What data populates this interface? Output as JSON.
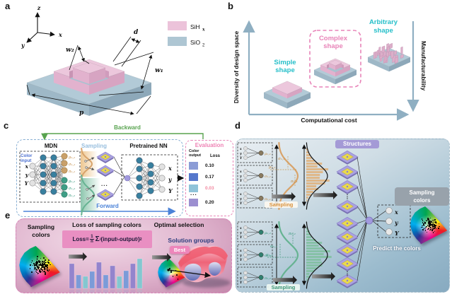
{
  "panel_a": {
    "label": "a",
    "axes": {
      "x": "x",
      "y": "y",
      "z": "z"
    },
    "dims": {
      "d": "d",
      "w2": "w₂",
      "w1": "w₁",
      "p": "p"
    },
    "legend": [
      {
        "name": "SiH",
        "sub": "x",
        "color": "#ecc3da"
      },
      {
        "name": "SiO",
        "sub": "2",
        "color": "#aec6d3"
      }
    ]
  },
  "panel_b": {
    "label": "b",
    "y_axis": "Diversity of design space",
    "x_axis": "Computational cost",
    "right_axis": "Manufacturability",
    "shapes": [
      {
        "line1": "Simple",
        "line2": "shape",
        "color": "#25bfc9"
      },
      {
        "line1": "Complex",
        "line2": "shape",
        "color": "#e884b8"
      },
      {
        "line1": "Arbitrary",
        "line2": "shape",
        "color": "#25bfc9"
      }
    ],
    "accent_cyan": "#25bfc9",
    "accent_pink": "#e884b8"
  },
  "panel_c": {
    "label": "c",
    "backward": "Backward",
    "forward": "Forward",
    "mdn_title": "MDN",
    "sampling_title": "Sampling",
    "nn_title": "Pretrained NN",
    "color_input": {
      "line1": "Color",
      "line2": "input"
    },
    "inputs": [
      "x",
      "y",
      "Y"
    ],
    "outputs": [
      "x",
      "y",
      "Y"
    ],
    "mdn_params_orange": [
      "μ₁,₁",
      "σ₁,₁",
      "π₁,₁"
    ],
    "mdn_params_green": [
      "μ₁,₂",
      "σ₁,₂",
      "π₁,₂"
    ],
    "dots": "...",
    "evaluation": {
      "title": "Evaluation",
      "col1_line1": "Color",
      "col1_line2": "output",
      "col2": "Loss",
      "rows": [
        {
          "color": "#8b9cd6",
          "loss": "0.10",
          "highlight": false
        },
        {
          "color": "#5577cc",
          "loss": "0.17",
          "highlight": false
        },
        {
          "color": "#8fc3d9",
          "loss": "0.03",
          "highlight": true
        },
        {
          "color": "#9c8fd0",
          "loss": "0.20",
          "highlight": false
        }
      ],
      "ellipsis": "...",
      "highlight_color": "#f2889f"
    }
  },
  "panel_d": {
    "label": "d",
    "structures_title": "Structures",
    "sampling_colors": {
      "line1": "Sampling",
      "line2": "colors"
    },
    "predict": "Predict the colors",
    "sampling_orange": "Sampling",
    "sampling_green": "Sampling",
    "box_inputs": [
      "x",
      "y",
      "Y"
    ],
    "orange_params": [
      "μ₁,₁",
      "σ₁,₁",
      "π₁,₁"
    ],
    "green_params": [
      "μ₁,₂",
      "σ₁,₂",
      "π₁,₂"
    ],
    "orange_annot": {
      "sigma": "σ₁,₁",
      "mu": "μ₁,₁",
      "pi": "π₁,₁"
    },
    "green_annot": {
      "sigma": "σ₁,₂",
      "mu": "μ₁,₂",
      "pi": "π₁,₂"
    },
    "outputs": [
      "x",
      "y",
      "Y"
    ],
    "dots": "⋮"
  },
  "panel_e": {
    "label": "e",
    "sampling_colors": {
      "line1": "Sampling",
      "line2": "colors"
    },
    "loss_title": "Loss of sampling colors",
    "formula": {
      "lhs": "Loss=",
      "num": "1",
      "den": "n",
      "sum": "Σ",
      "sum_sub": "i",
      "t1": "(input",
      "s1": "i",
      "t2": "-output",
      "s2": "i",
      "t3": ")",
      "sup": "2"
    },
    "optimal_title": "Optimal selection",
    "best": "Best",
    "solution": "Solution groups",
    "bars": {
      "values": [
        35,
        19,
        17,
        24,
        37,
        19,
        32,
        17,
        25,
        35,
        42
      ],
      "colors": [
        "#9384cd",
        "#7b9bd8",
        "#84c7d0",
        "#7b9bd8",
        "#9384cd",
        "#7b9bd8",
        "#9384cd",
        "#84c7d0",
        "#7b9bd8",
        "#9384cd",
        "#84c7d0"
      ]
    }
  }
}
